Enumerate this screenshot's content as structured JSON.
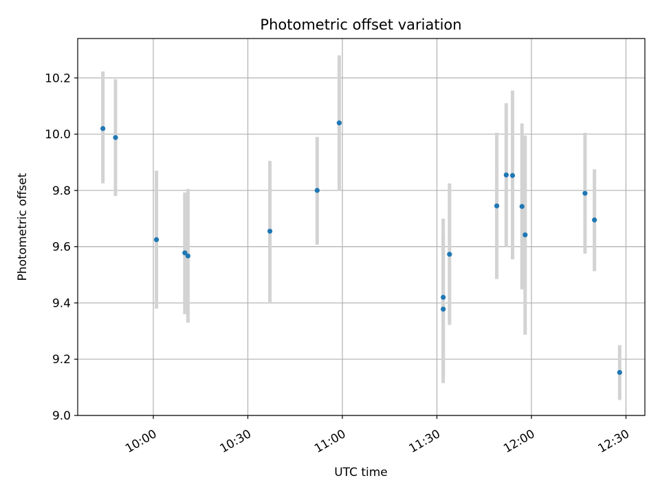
{
  "chart_data": {
    "type": "scatter",
    "title": "Photometric offset variation",
    "xlabel": "UTC time",
    "ylabel": "Photometric offset",
    "x_unit": "UTC time (HH:MM)",
    "xlim": [
      "09:36",
      "12:36"
    ],
    "ylim": [
      9.0,
      10.34
    ],
    "x_ticks": [
      {
        "value": "10:00",
        "label": "10:00"
      },
      {
        "value": "10:30",
        "label": "10:30"
      },
      {
        "value": "11:00",
        "label": "11:00"
      },
      {
        "value": "11:30",
        "label": "11:30"
      },
      {
        "value": "12:00",
        "label": "12:00"
      },
      {
        "value": "12:30",
        "label": "12:30"
      }
    ],
    "y_ticks": [
      {
        "value": 9.0,
        "label": "9.0"
      },
      {
        "value": 9.2,
        "label": "9.2"
      },
      {
        "value": 9.4,
        "label": "9.4"
      },
      {
        "value": 9.6,
        "label": "9.6"
      },
      {
        "value": 9.8,
        "label": "9.8"
      },
      {
        "value": 10.0,
        "label": "10.0"
      },
      {
        "value": 10.2,
        "label": "10.2"
      }
    ],
    "grid": true,
    "marker_color": "#1f77b4",
    "errorbar_color": "#d3d3d3",
    "points": [
      {
        "x": "09:44",
        "y": 10.02,
        "low": 9.825,
        "high": 10.223
      },
      {
        "x": "09:48",
        "y": 9.988,
        "low": 9.78,
        "high": 10.195
      },
      {
        "x": "10:01",
        "y": 9.625,
        "low": 9.38,
        "high": 9.87
      },
      {
        "x": "10:10",
        "y": 9.578,
        "low": 9.36,
        "high": 9.793
      },
      {
        "x": "10:11",
        "y": 9.567,
        "low": 9.33,
        "high": 9.805
      },
      {
        "x": "10:37",
        "y": 9.655,
        "low": 9.403,
        "high": 9.905
      },
      {
        "x": "10:52",
        "y": 9.8,
        "low": 9.607,
        "high": 9.99
      },
      {
        "x": "10:59",
        "y": 10.04,
        "low": 9.8,
        "high": 10.28
      },
      {
        "x": "11:32",
        "y": 9.378,
        "low": 9.115,
        "high": 9.64
      },
      {
        "x": "11:32",
        "y": 9.42,
        "low": 9.14,
        "high": 9.7
      },
      {
        "x": "11:34",
        "y": 9.573,
        "low": 9.322,
        "high": 9.825
      },
      {
        "x": "11:49",
        "y": 9.745,
        "low": 9.485,
        "high": 10.005
      },
      {
        "x": "11:52",
        "y": 9.855,
        "low": 9.6,
        "high": 10.11
      },
      {
        "x": "11:54",
        "y": 9.853,
        "low": 9.555,
        "high": 10.155
      },
      {
        "x": "11:57",
        "y": 9.743,
        "low": 9.448,
        "high": 10.038
      },
      {
        "x": "11:58",
        "y": 9.642,
        "low": 9.287,
        "high": 9.995
      },
      {
        "x": "12:17",
        "y": 9.79,
        "low": 9.575,
        "high": 10.005
      },
      {
        "x": "12:20",
        "y": 9.695,
        "low": 9.513,
        "high": 9.875
      },
      {
        "x": "12:28",
        "y": 9.153,
        "low": 9.055,
        "high": 9.25
      }
    ]
  }
}
